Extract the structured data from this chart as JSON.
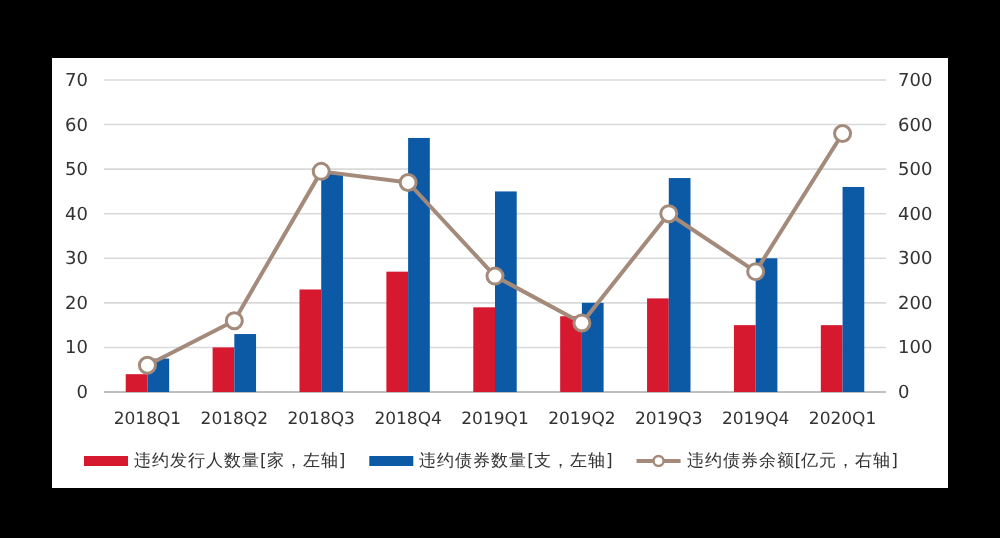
{
  "chart_data": {
    "type": "bar",
    "categories": [
      "2018Q1",
      "2018Q2",
      "2018Q3",
      "2018Q4",
      "2019Q1",
      "2019Q2",
      "2019Q3",
      "2019Q4",
      "2020Q1"
    ],
    "series": [
      {
        "name": "违约发行人数量[家，左轴]",
        "color": "#d7192f",
        "values": [
          4,
          10,
          23,
          27,
          19,
          17,
          21,
          15,
          15
        ]
      },
      {
        "name": "违约债券数量[支，左轴]",
        "color": "#0c5aa6",
        "values": [
          7.5,
          13,
          49,
          57,
          45,
          20,
          48,
          30,
          46
        ]
      },
      {
        "name": "违约债券余额[亿元，右轴]",
        "type": "line",
        "axis": "y2",
        "color": "#a38a7b",
        "marker": "circle",
        "values": [
          60,
          160,
          495,
          470,
          260,
          155,
          400,
          270,
          580
        ]
      }
    ],
    "ylim": [
      0,
      70
    ],
    "yticks": [
      0,
      10,
      20,
      30,
      40,
      50,
      60,
      70
    ],
    "y2lim": [
      0,
      700
    ],
    "y2ticks": [
      0,
      100,
      200,
      300,
      400,
      500,
      600,
      700
    ],
    "grid": "y",
    "legend": "bottom"
  }
}
